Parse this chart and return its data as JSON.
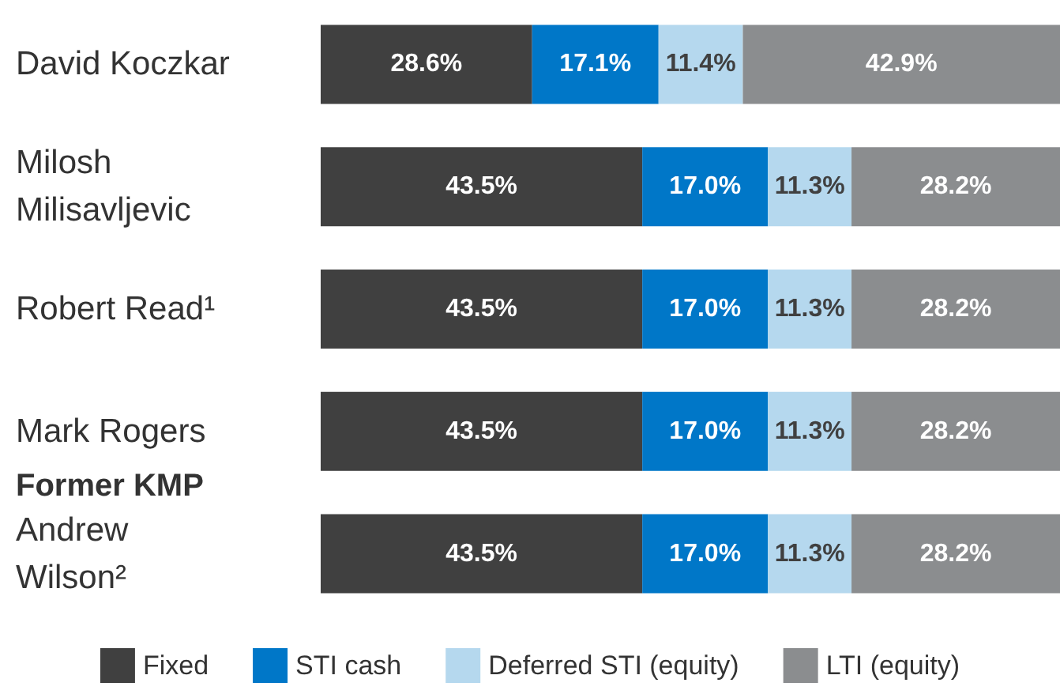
{
  "chart_data": {
    "type": "bar",
    "orientation": "horizontal",
    "stacked": true,
    "legend": "bottom",
    "categories": [
      "David Koczkar",
      "Milosh Milisavljevic",
      "Robert Read¹",
      "Mark Rogers",
      "Andrew Wilson²"
    ],
    "annotations": [
      "Former KMP"
    ],
    "series": [
      {
        "name": "Fixed",
        "color": "#404040",
        "values": [
          28.6,
          43.5,
          43.5,
          43.5,
          43.5
        ],
        "value_labels": [
          "28.6%",
          "43.5%",
          "43.5%",
          "43.5%",
          "43.5%"
        ]
      },
      {
        "name": "STI cash",
        "color": "#0077c8",
        "values": [
          17.1,
          17.0,
          17.0,
          17.0,
          17.0
        ],
        "value_labels": [
          "17.1%",
          "17.0%",
          "17.0%",
          "17.0%",
          "17.0%"
        ]
      },
      {
        "name": "Deferred STI (equity)",
        "color": "#b5d8ee",
        "values": [
          11.4,
          11.3,
          11.3,
          11.3,
          11.3
        ],
        "value_labels": [
          "11.4%",
          "11.3%",
          "11.3%",
          "11.3%",
          "11.3%"
        ]
      },
      {
        "name": "LTI (equity)",
        "color": "#8b8d8f",
        "values": [
          42.9,
          28.2,
          28.2,
          28.2,
          28.2
        ],
        "value_labels": [
          "42.9%",
          "28.2%",
          "28.2%",
          "28.2%",
          "28.2%"
        ]
      }
    ]
  }
}
